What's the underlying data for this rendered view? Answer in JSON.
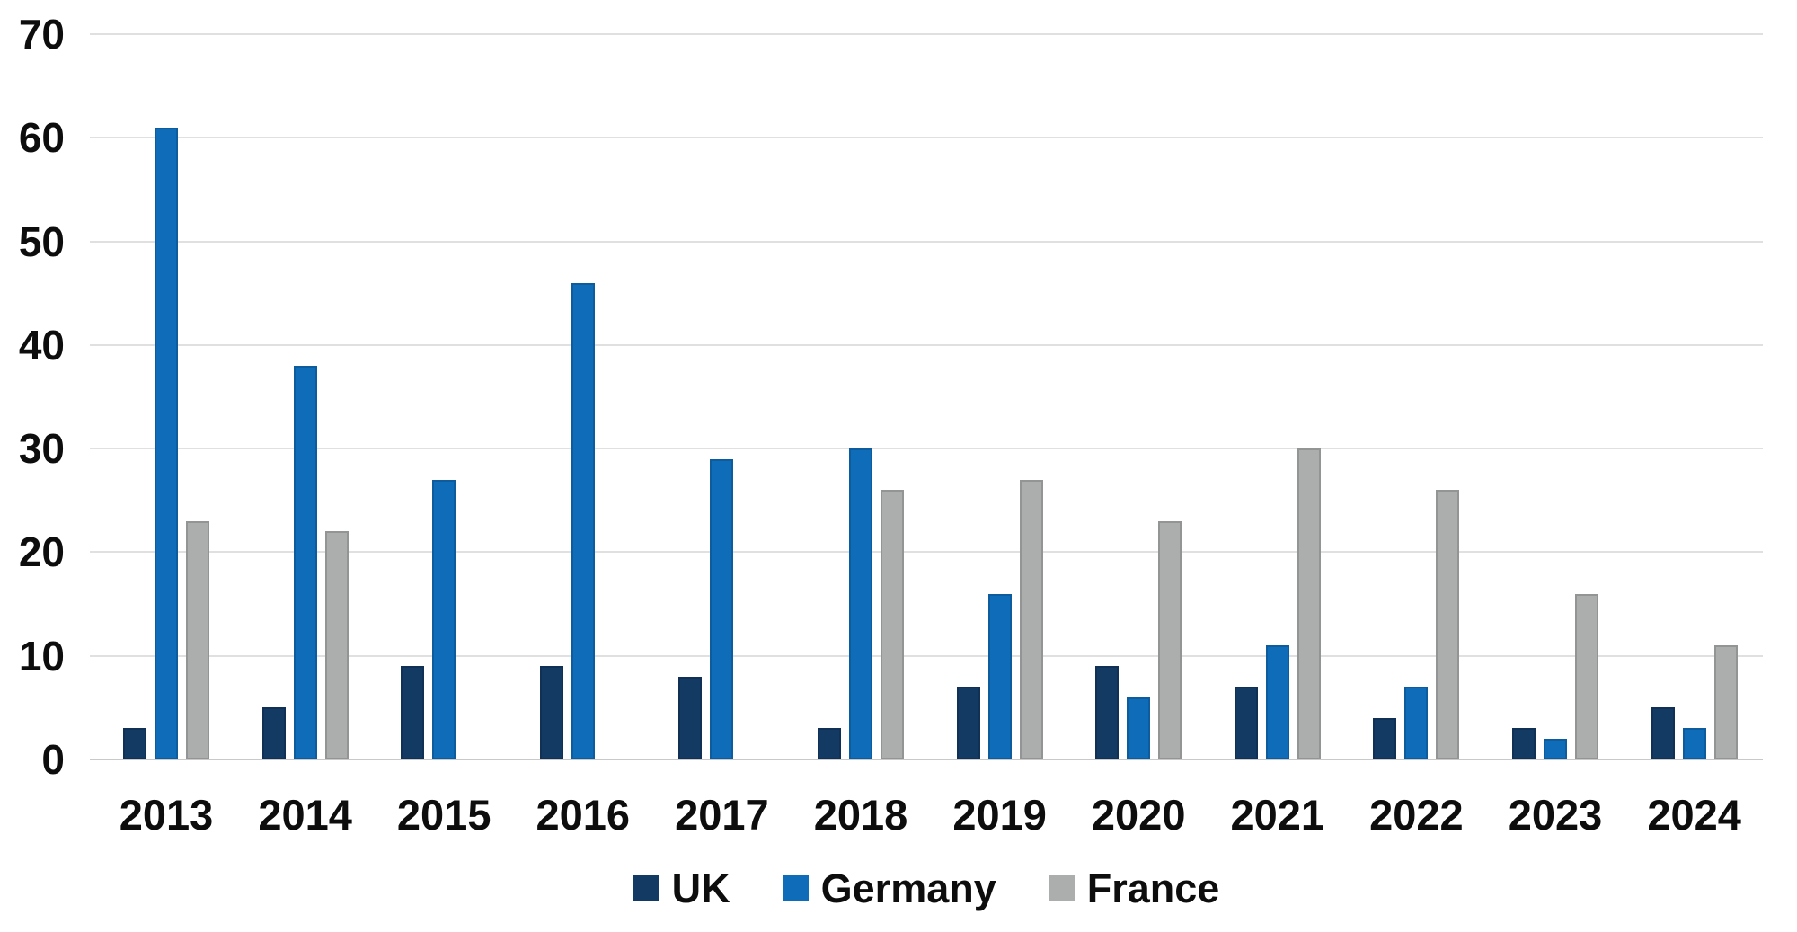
{
  "chart_data": {
    "type": "bar",
    "title": "",
    "xlabel": "",
    "ylabel": "",
    "categories": [
      "2013",
      "2014",
      "2015",
      "2016",
      "2017",
      "2018",
      "2019",
      "2020",
      "2021",
      "2022",
      "2023",
      "2024"
    ],
    "series": [
      {
        "name": "UK",
        "color": "#133a63",
        "values": [
          3,
          5,
          9,
          9,
          8,
          3,
          7,
          9,
          7,
          4,
          3,
          5
        ]
      },
      {
        "name": "Germany",
        "color": "#0f6cb8",
        "values": [
          61,
          38,
          27,
          46,
          29,
          30,
          16,
          6,
          11,
          7,
          2,
          3
        ]
      },
      {
        "name": "France",
        "color": "#abaead",
        "values": [
          23,
          22,
          0,
          0,
          0,
          26,
          27,
          23,
          30,
          26,
          16,
          11
        ]
      }
    ],
    "ylim": [
      0,
      70
    ],
    "yticks": [
      0,
      10,
      20,
      30,
      40,
      50,
      60,
      70
    ],
    "grid": true,
    "legend_position": "bottom"
  },
  "styles": {
    "background": "#ffffff",
    "grid_color": "#e0e0e0",
    "zero_line_color": "#c9c9c9",
    "text_color": "#0d0d0d"
  }
}
